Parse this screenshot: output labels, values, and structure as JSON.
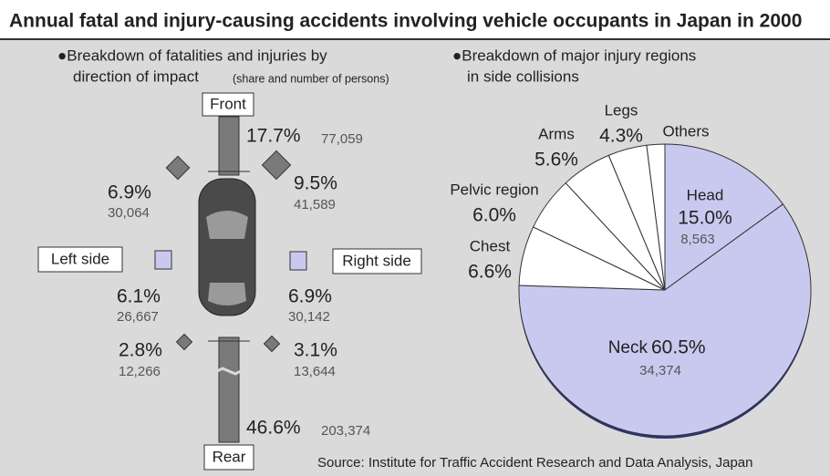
{
  "title": "Annual fatal and injury-causing accidents involving vehicle occupants in Japan in 2000",
  "source": "Source: Institute for Traffic Accident Research and Data Analysis, Japan",
  "impact": {
    "heading": [
      "●Breakdown of fatalities and injuries by",
      "direction of impact"
    ],
    "note": "(share and number of persons)",
    "directions": [
      {
        "label": "Front",
        "share": "17.7%",
        "count": "77,059"
      },
      {
        "share": "6.9%",
        "count": "30,064"
      },
      {
        "share": "9.5%",
        "count": "41,589"
      },
      {
        "label": "Left side",
        "share": "6.1%",
        "count": "26,667"
      },
      {
        "label": "Right side",
        "share": "6.9%",
        "count": "30,142"
      },
      {
        "share": "2.8%",
        "count": "12,266"
      },
      {
        "share": "3.1%",
        "count": "13,644"
      },
      {
        "label": "Rear",
        "share": "46.6%",
        "count": "203,374"
      }
    ]
  },
  "chart_data": {
    "type": "pie",
    "title": [
      "●Breakdown of major injury regions",
      "in side collisions"
    ],
    "categories": [
      "Head",
      "Neck",
      "Chest",
      "Pelvic region",
      "Arms",
      "Legs",
      "Others"
    ],
    "values": [
      15.0,
      60.5,
      6.6,
      6.0,
      5.6,
      4.3,
      2.0
    ],
    "value_labels": [
      "15.0%",
      "60.5%",
      "6.6%",
      "6.0%",
      "5.6%",
      "4.3%",
      null
    ],
    "counts": [
      "8,563",
      "34,374",
      null,
      null,
      null,
      null,
      null
    ],
    "colors": [
      "#c9c9f0",
      "#c9c9f0",
      "#ffffff",
      "#ffffff",
      "#ffffff",
      "#ffffff",
      "#ffffff"
    ]
  }
}
